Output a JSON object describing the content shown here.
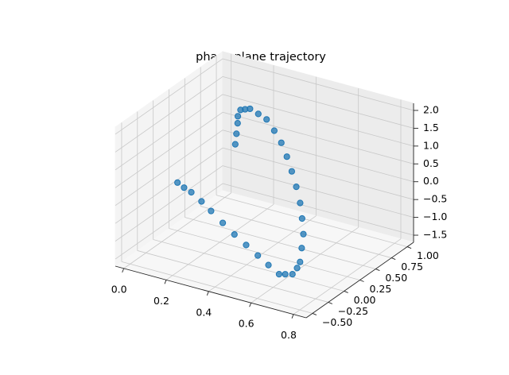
{
  "chart_data": {
    "type": "scatter3d",
    "title": "phase plane trajectory",
    "color": "#1f77b4",
    "grid": true,
    "x": [
      0.07,
      0.08,
      0.09,
      0.1,
      0.12,
      0.155,
      0.19,
      0.25,
      0.31,
      0.37,
      0.43,
      0.48,
      0.53,
      0.575,
      0.62,
      0.65,
      0.68,
      0.69,
      0.7,
      0.695,
      0.685,
      0.645,
      0.61,
      0.545,
      0.48,
      0.41,
      0.34,
      0.27,
      0.2,
      0.14,
      0.08,
      0.04,
      0.0
    ],
    "y": [
      0.93,
      0.915,
      0.9,
      0.87,
      0.845,
      0.8,
      0.76,
      0.69,
      0.62,
      0.54,
      0.45,
      0.37,
      0.28,
      0.2,
      0.11,
      0.04,
      -0.04,
      -0.1,
      -0.16,
      -0.19,
      -0.23,
      -0.21,
      -0.19,
      -0.14,
      -0.09,
      -0.04,
      0.01,
      0.06,
      0.11,
      0.16,
      0.2,
      0.22,
      0.25
    ],
    "z": [
      -0.01,
      0.32,
      0.65,
      0.9,
      1.14,
      1.27,
      1.39,
      1.43,
      1.46,
      1.34,
      1.21,
      1.0,
      0.78,
      0.52,
      0.25,
      -0.05,
      -0.34,
      -0.64,
      -0.94,
      -1.08,
      -1.22,
      -1.31,
      -1.39,
      -1.3,
      -1.2,
      -1.08,
      -0.96,
      -0.81,
      -0.65,
      -0.54,
      -0.43,
      -0.39,
      -0.35
    ],
    "xlim": [
      -0.04,
      0.86
    ],
    "ylim": [
      -0.6,
      1.1
    ],
    "zlim": [
      -1.7,
      2.2
    ],
    "xticks": [
      {
        "value": 0,
        "label": "0.0"
      },
      0.2,
      0.4,
      0.6,
      0.8
    ],
    "yticks": [
      {
        "value": -0.5,
        "label": "−0.50"
      },
      {
        "value": -0.25,
        "label": "−0.25"
      },
      {
        "value": 0,
        "label": "0.00"
      },
      0.25,
      {
        "value": 0.5,
        "label": "0.50"
      },
      0.75,
      {
        "value": 1,
        "label": "1.00"
      }
    ],
    "zticks": [
      {
        "value": -1.5,
        "label": "−1.5"
      },
      {
        "value": -1,
        "label": "−1.0"
      },
      {
        "value": -0.5,
        "label": "−0.5"
      },
      {
        "value": 0,
        "label": "0.0"
      },
      0.5,
      {
        "value": 1,
        "label": "1.0"
      },
      1.5,
      {
        "value": 2,
        "label": "2.0"
      }
    ]
  }
}
